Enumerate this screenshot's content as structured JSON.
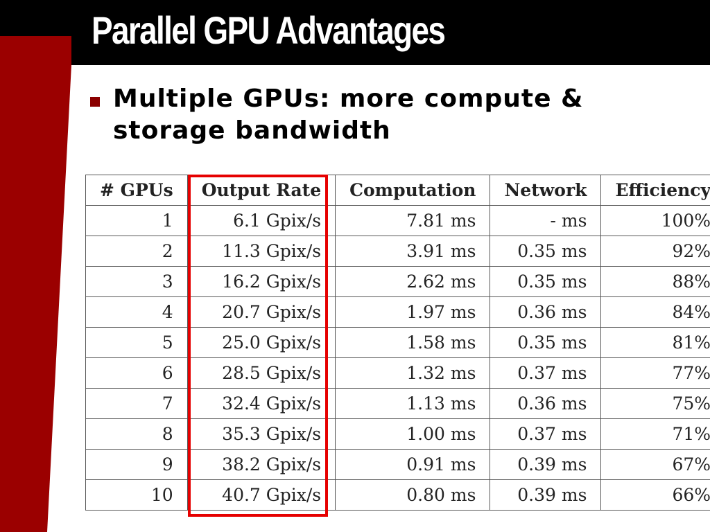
{
  "slide": {
    "title": "Parallel GPU Advantages",
    "bullet": "Multiple GPUs: more compute & storage bandwidth",
    "accent_color": "#8b0000",
    "highlight_color": "#e60000"
  },
  "table": {
    "headers": [
      "# GPUs",
      "Output Rate",
      "Computation",
      "Network",
      "Efficiency"
    ],
    "rows": [
      [
        "1",
        "6.1 Gpix/s",
        "7.81 ms",
        "- ms",
        "100%"
      ],
      [
        "2",
        "11.3 Gpix/s",
        "3.91 ms",
        "0.35 ms",
        "92%"
      ],
      [
        "3",
        "16.2 Gpix/s",
        "2.62 ms",
        "0.35 ms",
        "88%"
      ],
      [
        "4",
        "20.7 Gpix/s",
        "1.97 ms",
        "0.36 ms",
        "84%"
      ],
      [
        "5",
        "25.0 Gpix/s",
        "1.58 ms",
        "0.35 ms",
        "81%"
      ],
      [
        "6",
        "28.5 Gpix/s",
        "1.32 ms",
        "0.37 ms",
        "77%"
      ],
      [
        "7",
        "32.4 Gpix/s",
        "1.13 ms",
        "0.36 ms",
        "75%"
      ],
      [
        "8",
        "35.3 Gpix/s",
        "1.00 ms",
        "0.37 ms",
        "71%"
      ],
      [
        "9",
        "38.2 Gpix/s",
        "0.91 ms",
        "0.39 ms",
        "67%"
      ],
      [
        "10",
        "40.7 Gpix/s",
        "0.80 ms",
        "0.39 ms",
        "66%"
      ]
    ]
  }
}
